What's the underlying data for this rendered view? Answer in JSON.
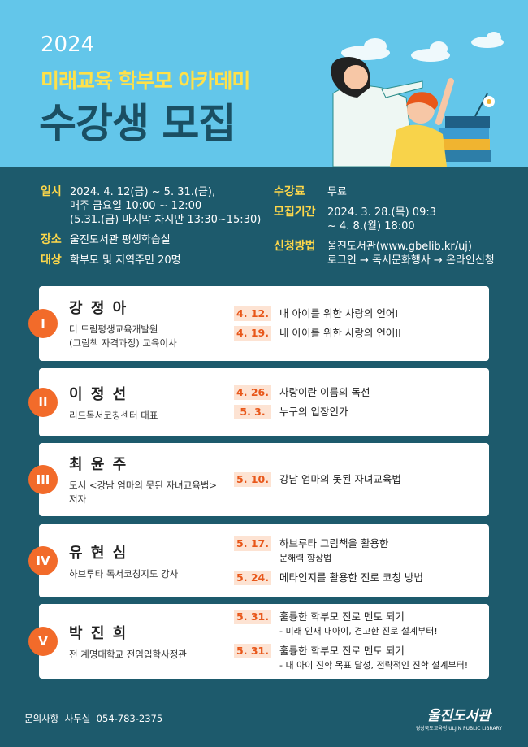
{
  "header": {
    "year": "2024",
    "subtitle": "미래교육 학부모 아카데미",
    "title": "수강생 모집"
  },
  "info": {
    "left": [
      {
        "label": "일시",
        "lines": [
          "2024. 4. 12(금) ~ 5. 31.(금),",
          "매주 금요일 10:00 ~ 12:00",
          "(5.31.(금) 마지막 차시만 13:30~15:30)"
        ]
      },
      {
        "label": "장소",
        "lines": [
          "울진도서관 평생학습실"
        ]
      },
      {
        "label": "대상",
        "lines": [
          "학부모 및 지역주민 20명"
        ]
      }
    ],
    "right": [
      {
        "label": "수강료",
        "lines": [
          "무료"
        ]
      },
      {
        "label": "모집기간",
        "lines": [
          "2024. 3. 28.(목) 09:3",
          "~ 4. 8.(월) 18:00"
        ]
      },
      {
        "label": "신청방법",
        "lines": [
          "울진도서관(www.gbelib.kr/uj)",
          "로그인 → 독서문화행사 → 온라인신청"
        ]
      }
    ]
  },
  "sessions": [
    {
      "numeral": "I",
      "name": "강 정 아",
      "affiliation": [
        "더 드림평생교육개발원",
        "(그림책 자격과정) 교육이사"
      ],
      "lectures": [
        {
          "date": "4. 12.",
          "topic": [
            "내 아이를 위한 사랑의 언어I"
          ]
        },
        {
          "date": "4. 19.",
          "topic": [
            "내 아이를 위한 사랑의 언어II"
          ]
        }
      ]
    },
    {
      "numeral": "II",
      "name": "이 정 선",
      "affiliation": [
        "리드독서코칭센터 대표"
      ],
      "lectures": [
        {
          "date": "4. 26.",
          "topic": [
            "사랑이란 이름의 독선"
          ]
        },
        {
          "date": "5. 3.",
          "topic": [
            "누구의 입장인가"
          ]
        }
      ]
    },
    {
      "numeral": "III",
      "name": "최 윤 주",
      "affiliation": [
        "도서 <강남 엄마의 못된 자녀교육법>",
        "저자"
      ],
      "lectures": [
        {
          "date": "5. 10.",
          "topic": [
            "강남 엄마의 못된 자녀교육법"
          ]
        }
      ]
    },
    {
      "numeral": "IV",
      "name": "유 현 심",
      "affiliation": [
        "하브루타 독서코칭지도 강사"
      ],
      "lectures": [
        {
          "date": "5. 17.",
          "topic": [
            "하브루타 그림책을 활용한",
            "문해력 향상법"
          ]
        },
        {
          "date": "5. 24.",
          "topic": [
            "메타인지를 활용한 진로 코칭 방법"
          ]
        }
      ]
    },
    {
      "numeral": "V",
      "name": "박 진 희",
      "affiliation": [
        "전 계명대학교 전임입학사정관"
      ],
      "lectures": [
        {
          "date": "5. 31.",
          "topic": [
            "훌륭한 학부모 진로 멘토 되기",
            "- 미래 인재 내아이, 견고한 진로 설계부터!"
          ]
        },
        {
          "date": "5. 31.",
          "topic": [
            "훌륭한 학부모 진로 멘토 되기",
            "- 내 아이 진학 목표 달성, 전략적인 진학 설계부터!"
          ]
        }
      ]
    }
  ],
  "footer": {
    "contact": "문의사항  사무실  054-783-2375",
    "logo": "울진도서관",
    "logo_sub": "경상북도교육청 ULJIN PUBLIC LIBRARY"
  }
}
